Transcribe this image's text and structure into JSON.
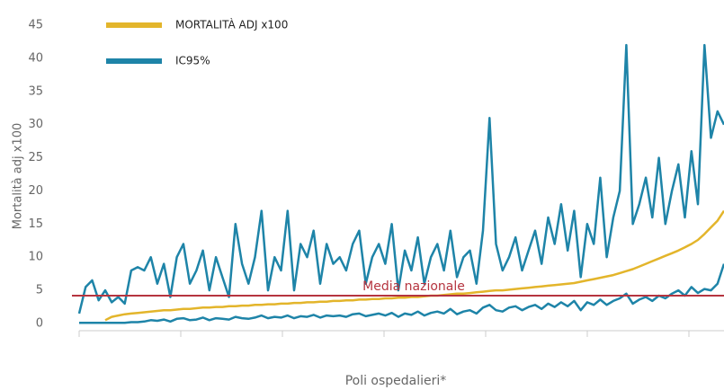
{
  "chart_data": {
    "type": "line",
    "y_label": "Mortalità adj x100",
    "x_label": "Poli ospedalieri*",
    "categories": [
      null,
      null,
      null,
      null,
      null,
      null,
      null,
      null,
      null,
      null,
      null,
      null,
      null,
      null,
      null,
      null,
      null,
      null,
      null,
      null,
      null,
      null,
      null,
      null,
      null,
      null,
      null,
      null,
      null,
      null,
      null,
      null,
      null,
      null,
      null,
      null,
      null,
      null,
      null,
      null,
      null,
      null,
      null,
      null,
      null,
      null,
      null,
      null,
      null,
      null,
      null,
      null,
      null,
      null,
      null,
      null,
      null,
      null,
      null,
      null,
      null,
      null,
      null,
      null,
      null,
      null,
      null,
      null,
      null,
      null,
      null,
      null,
      null,
      null,
      null,
      null,
      null,
      null,
      null,
      null,
      null,
      null,
      null,
      null,
      null,
      null,
      null,
      null,
      null,
      null,
      null,
      null,
      null,
      null,
      null,
      null,
      null,
      null,
      null,
      null
    ],
    "series": [
      {
        "name": "MORTALITÀ ADJ x100",
        "color": "#e3b52b",
        "values": [
          null,
          null,
          null,
          null,
          0.5,
          1,
          1.2,
          1.4,
          1.5,
          1.6,
          1.7,
          1.8,
          1.9,
          2,
          2,
          2.1,
          2.2,
          2.2,
          2.3,
          2.4,
          2.4,
          2.5,
          2.5,
          2.6,
          2.6,
          2.7,
          2.7,
          2.8,
          2.8,
          2.9,
          2.9,
          3,
          3,
          3.1,
          3.1,
          3.2,
          3.2,
          3.3,
          3.3,
          3.4,
          3.4,
          3.5,
          3.5,
          3.6,
          3.6,
          3.7,
          3.7,
          3.8,
          3.8,
          3.9,
          3.9,
          4,
          4,
          4.1,
          4.2,
          4.2,
          4.3,
          4.4,
          4.5,
          4.5,
          4.6,
          4.7,
          4.8,
          4.9,
          5,
          5,
          5.1,
          5.2,
          5.3,
          5.4,
          5.5,
          5.6,
          5.7,
          5.8,
          5.9,
          6,
          6.1,
          6.3,
          6.5,
          6.7,
          6.9,
          7.1,
          7.3,
          7.6,
          7.9,
          8.2,
          8.6,
          9,
          9.4,
          9.8,
          10.2,
          10.6,
          11,
          11.5,
          12,
          12.6,
          13.5,
          14.5,
          15.5,
          17
        ]
      },
      {
        "name": "IC95%",
        "color": "#1e84a8",
        "values": [
          1.5,
          5.5,
          6.5,
          3.5,
          5,
          3.2,
          4,
          3,
          8,
          8.5,
          8,
          10,
          6,
          9,
          4,
          10,
          12,
          6,
          8,
          11,
          5,
          10,
          7,
          4,
          15,
          9,
          6,
          10,
          17,
          5,
          10,
          8,
          17,
          5,
          12,
          10,
          14,
          6,
          12,
          9,
          10,
          8,
          12,
          14,
          6,
          10,
          12,
          9,
          15,
          5,
          11,
          8,
          13,
          6,
          10,
          12,
          8,
          14,
          7,
          10,
          11,
          6,
          14,
          31,
          12,
          8,
          10,
          13,
          8,
          11,
          14,
          9,
          16,
          12,
          18,
          11,
          17,
          7,
          15,
          12,
          22,
          10,
          16,
          20,
          42,
          15,
          18,
          22,
          16,
          25,
          15,
          20,
          24,
          16,
          26,
          18,
          42,
          28,
          32,
          30
        ],
        "low": [
          0.1,
          0.1,
          0.1,
          0.1,
          0.1,
          0.1,
          0.1,
          0.1,
          0.2,
          0.2,
          0.3,
          0.5,
          0.4,
          0.6,
          0.3,
          0.7,
          0.8,
          0.5,
          0.6,
          0.9,
          0.5,
          0.8,
          0.7,
          0.6,
          1,
          0.8,
          0.7,
          0.9,
          1.2,
          0.8,
          1,
          0.9,
          1.2,
          0.8,
          1.1,
          1,
          1.3,
          0.9,
          1.2,
          1.1,
          1.2,
          1,
          1.4,
          1.5,
          1.1,
          1.3,
          1.5,
          1.2,
          1.6,
          1,
          1.5,
          1.3,
          1.8,
          1.2,
          1.6,
          1.8,
          1.5,
          2.2,
          1.4,
          1.8,
          2,
          1.5,
          2.4,
          2.8,
          2,
          1.8,
          2.4,
          2.6,
          2,
          2.5,
          2.8,
          2.2,
          3,
          2.5,
          3.2,
          2.6,
          3.4,
          2,
          3.2,
          2.8,
          3.6,
          2.8,
          3.4,
          3.8,
          4.5,
          3,
          3.6,
          4,
          3.4,
          4.2,
          3.8,
          4.5,
          5,
          4.2,
          5.5,
          4.6,
          5.2,
          5,
          6,
          9
        ]
      }
    ],
    "reference_line": {
      "label": "Media nazionale",
      "value": 4.2,
      "color": "#b5343f"
    },
    "ylim": [
      0,
      45
    ],
    "yticks": [
      0,
      5,
      10,
      15,
      20,
      25,
      30,
      35,
      40,
      45
    ],
    "grid": false
  }
}
